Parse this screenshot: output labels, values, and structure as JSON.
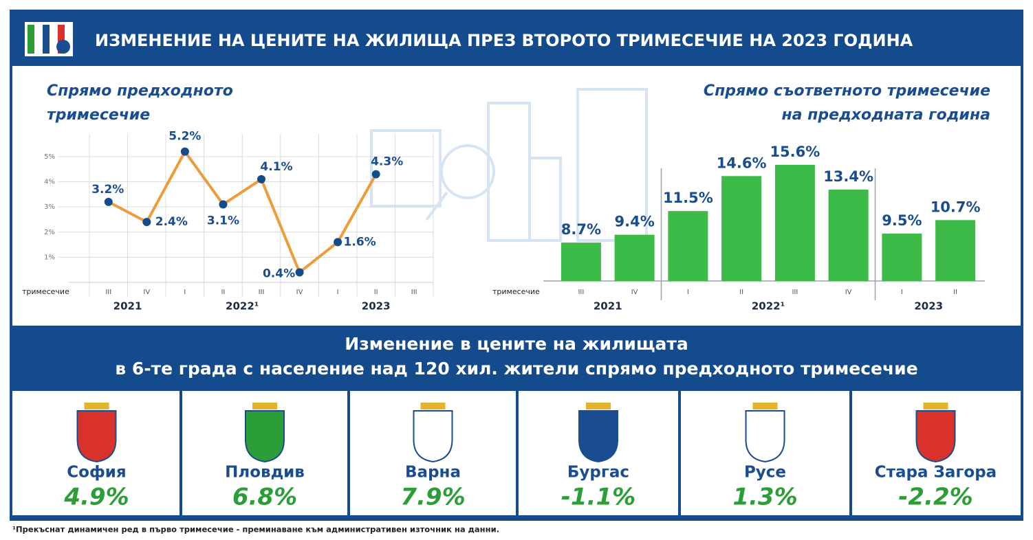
{
  "title": "ИЗМЕНЕНИЕ НА ЦЕНИТЕ НА ЖИЛИЩА ПРЕЗ ВТОРОТО ТРИМЕСЕЧИЕ НА 2023 ГОДИНА",
  "chart_data": [
    {
      "type": "line",
      "title": [
        "Спрямо предходното",
        "тримесечие"
      ],
      "x_label": "тримесечие",
      "categories": [
        "III",
        "IV",
        "I",
        "II",
        "III",
        "IV",
        "I",
        "II",
        "III"
      ],
      "year_groups": [
        "2021",
        "2022¹",
        "2023"
      ],
      "values": [
        3.2,
        2.4,
        5.2,
        3.1,
        4.1,
        0.4,
        1.6,
        4.3,
        null
      ],
      "value_labels": [
        "3.2%",
        "2.4%",
        "5.2%",
        "3.1%",
        "4.1%",
        "0.4%",
        "1.6%",
        "4.3%",
        null
      ],
      "color": "#ee9b3b",
      "marker_color": "#144b8a",
      "ylim": [
        0,
        5.9
      ],
      "yticks": [
        {
          "value": 1,
          "label": "1%"
        },
        {
          "value": 2,
          "label": "2%"
        },
        {
          "value": 3,
          "label": "3%"
        },
        {
          "value": 4,
          "label": "4%"
        },
        {
          "value": 5,
          "label": "5%"
        }
      ],
      "grid": true
    },
    {
      "type": "bar",
      "title": [
        "Спрямо съответното тримесечие",
        "на предходната година"
      ],
      "x_label": "тримесечие",
      "categories": [
        "III",
        "IV",
        "I",
        "II",
        "III",
        "IV",
        "I",
        "II"
      ],
      "year_groups": [
        "2021",
        "2022¹",
        "2023"
      ],
      "values": [
        8.7,
        9.4,
        11.5,
        14.6,
        15.6,
        13.4,
        9.5,
        10.7
      ],
      "value_labels": [
        "8.7%",
        "9.4%",
        "11.5%",
        "14.6%",
        "15.6%",
        "13.4%",
        "9.5%",
        "10.7%"
      ],
      "color": "#3dbb48",
      "ylim": [
        5.3,
        16.2
      ]
    }
  ],
  "cities_section": {
    "title": [
      "Изменение в цените на жилищата",
      "в 6-те града с население над 120 хил. жители спрямо предходното тримесечие"
    ],
    "color": "#2c9e37",
    "cities": [
      {
        "name": "София",
        "value": 4.9,
        "value_label": "4.9%"
      },
      {
        "name": "Пловдив",
        "value": 6.8,
        "value_label": "6.8%"
      },
      {
        "name": "Варна",
        "value": 7.9,
        "value_label": "7.9%"
      },
      {
        "name": "Бургас",
        "value": -1.1,
        "value_label": "-1.1%"
      },
      {
        "name": "Русе",
        "value": 1.3,
        "value_label": "1.3%"
      },
      {
        "name": "Стара Загора",
        "value": -2.2,
        "value_label": "-2.2%"
      }
    ]
  },
  "footnote": "¹Прекъснат динамичен ред в първо тримесечие - преминаване към административен източник на данни."
}
